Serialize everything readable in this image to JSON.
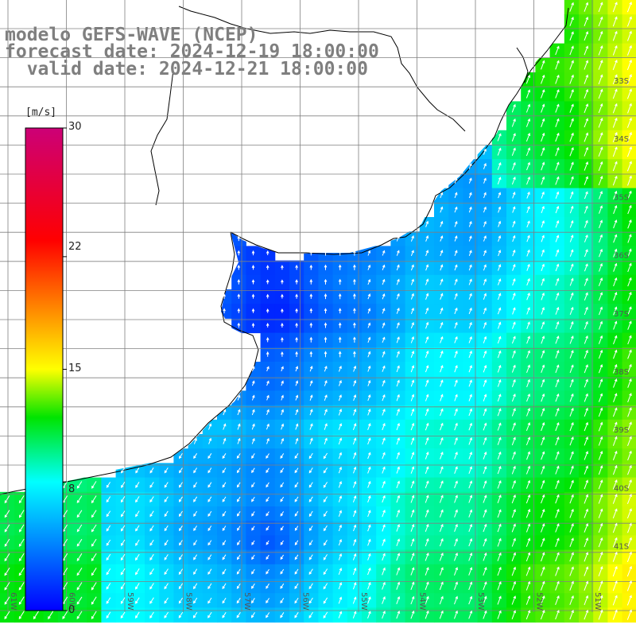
{
  "header": {
    "model_line": "modelo GEFS-WAVE (NCEP)",
    "forecast_line": "forecast date: 2024-12-19 18:00:00",
    "valid_line": "  valid date: 2024-12-21 18:00:00"
  },
  "colorbar": {
    "unit": "[m/s]",
    "ticks": [
      "30",
      "22",
      "15",
      "8",
      "0"
    ],
    "tick_values": [
      30,
      22,
      15,
      8,
      0
    ],
    "stops": [
      {
        "value": 0,
        "color": "#0000ff"
      },
      {
        "value": 8,
        "color": "#00ffff"
      },
      {
        "value": 12,
        "color": "#00e400"
      },
      {
        "value": 15,
        "color": "#ffff00"
      },
      {
        "value": 19,
        "color": "#ff8000"
      },
      {
        "value": 23,
        "color": "#ff0000"
      },
      {
        "value": 30,
        "color": "#cc0077"
      }
    ]
  },
  "map": {
    "lat_labels": [
      "33S",
      "34S",
      "35S",
      "36S",
      "37S",
      "38S",
      "39S",
      "40S",
      "41S"
    ],
    "lon_labels": [
      "61W",
      "60W",
      "59W",
      "58W",
      "57W",
      "56W",
      "55W",
      "54W",
      "53W",
      "52W",
      "51W"
    ],
    "land_color": "#ffffff",
    "arrow_color": "#ffffff"
  }
}
